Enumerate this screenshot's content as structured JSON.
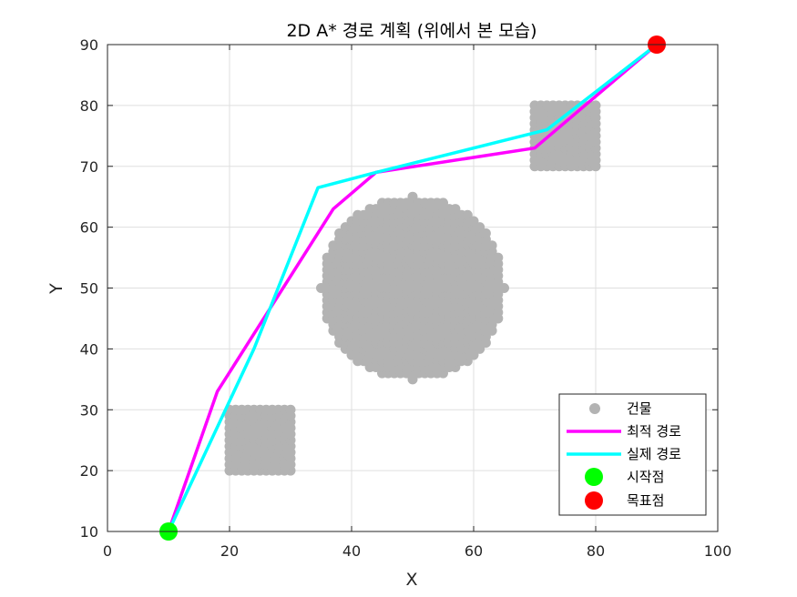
{
  "chart_data": {
    "type": "line",
    "title": "2D A* 경로 계획 (위에서 본 모습)",
    "xlabel": "X",
    "ylabel": "Y",
    "xlim": [
      0,
      100
    ],
    "ylim": [
      10,
      90
    ],
    "xticks": [
      "0",
      "20",
      "40",
      "60",
      "80",
      "100"
    ],
    "yticks": [
      "10",
      "20",
      "30",
      "40",
      "50",
      "60",
      "70",
      "80",
      "90"
    ],
    "grid": true,
    "legend_position": "bottom-right",
    "colors": {
      "buildings": "#b3b3b3",
      "optimal_path": "#ff00ff",
      "actual_path": "#00ffff",
      "start": "#00ff00",
      "goal": "#ff0000"
    },
    "obstacles": [
      {
        "shape": "square",
        "x": [
          20,
          30
        ],
        "y": [
          20,
          30
        ]
      },
      {
        "shape": "circle",
        "center": [
          50,
          50
        ],
        "radius": 15
      },
      {
        "shape": "square",
        "x": [
          70,
          80
        ],
        "y": [
          70,
          80
        ]
      }
    ],
    "series": [
      {
        "name": "최적 경로",
        "points": [
          [
            10,
            10
          ],
          [
            18,
            33
          ],
          [
            37,
            63
          ],
          [
            44,
            69
          ],
          [
            70,
            73
          ],
          [
            90,
            90
          ]
        ]
      },
      {
        "name": "실제 경로",
        "points": [
          [
            10,
            10
          ],
          [
            24,
            40
          ],
          [
            34.5,
            66.5
          ],
          [
            44,
            69
          ],
          [
            72,
            76
          ],
          [
            90,
            90
          ]
        ]
      }
    ],
    "start": [
      10,
      10
    ],
    "goal": [
      90,
      90
    ],
    "legend": [
      "건물",
      "최적 경로",
      "실제 경로",
      "시작점",
      "목표점"
    ]
  }
}
